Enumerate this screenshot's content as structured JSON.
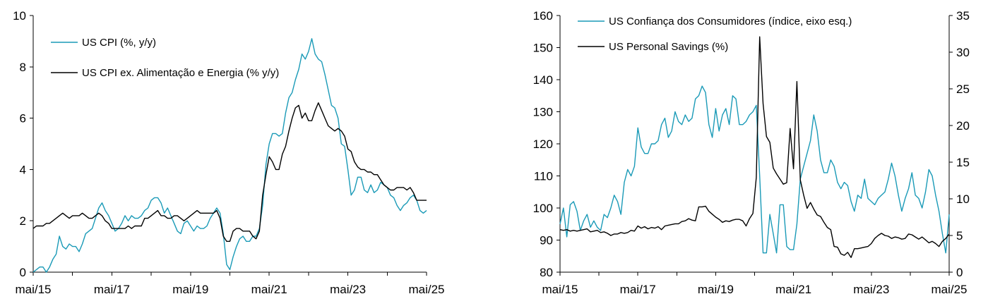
{
  "chart_data": [
    {
      "type": "line",
      "title": "",
      "xlabel": "",
      "ylabel": "",
      "ylim": [
        0,
        10
      ],
      "y_ticks": [
        "0",
        "2",
        "4",
        "6",
        "8",
        "10"
      ],
      "x_ticks": [
        "mai/15",
        "mai/17",
        "mai/19",
        "mai/21",
        "mai/23",
        "mai/25"
      ],
      "x_start": "2015-05",
      "x_end": "2025-05",
      "legend_position": "top-left",
      "series": [
        {
          "name": "US CPI (%, y/y)",
          "color": "#1a9ab7",
          "values": [
            0.0,
            0.1,
            0.2,
            0.2,
            0.0,
            0.2,
            0.5,
            0.7,
            1.4,
            1.0,
            0.9,
            1.1,
            1.0,
            1.0,
            0.8,
            1.1,
            1.5,
            1.6,
            1.7,
            2.1,
            2.5,
            2.7,
            2.4,
            2.2,
            1.9,
            1.6,
            1.7,
            1.9,
            2.2,
            2.0,
            2.2,
            2.1,
            2.1,
            2.2,
            2.4,
            2.5,
            2.8,
            2.9,
            2.9,
            2.7,
            2.3,
            2.5,
            2.2,
            1.9,
            1.6,
            1.5,
            1.9,
            2.0,
            1.8,
            1.6,
            1.8,
            1.7,
            1.7,
            1.8,
            2.1,
            2.3,
            2.5,
            2.3,
            1.5,
            0.3,
            0.1,
            0.6,
            1.0,
            1.3,
            1.4,
            1.2,
            1.2,
            1.4,
            1.4,
            1.7,
            2.6,
            4.2,
            5.0,
            5.4,
            5.4,
            5.3,
            5.4,
            6.2,
            6.8,
            7.0,
            7.5,
            7.9,
            8.5,
            8.3,
            8.6,
            9.1,
            8.5,
            8.3,
            8.2,
            7.7,
            7.1,
            6.5,
            6.4,
            6.0,
            5.0,
            4.9,
            4.0,
            3.0,
            3.2,
            3.7,
            3.7,
            3.2,
            3.1,
            3.4,
            3.1,
            3.2,
            3.5,
            3.4,
            3.3,
            3.0,
            2.9,
            2.6,
            2.4,
            2.6,
            2.7,
            2.9,
            3.0,
            2.8,
            2.4,
            2.3,
            2.4
          ]
        },
        {
          "name": "US CPI ex. Alimentação e Energia (% y/y)",
          "color": "#000000",
          "values": [
            1.7,
            1.8,
            1.8,
            1.8,
            1.9,
            1.9,
            2.0,
            2.1,
            2.2,
            2.3,
            2.2,
            2.1,
            2.2,
            2.2,
            2.2,
            2.3,
            2.2,
            2.1,
            2.1,
            2.2,
            2.3,
            2.2,
            2.0,
            1.9,
            1.7,
            1.7,
            1.7,
            1.7,
            1.7,
            1.8,
            1.7,
            1.8,
            1.8,
            1.8,
            2.1,
            2.1,
            2.2,
            2.3,
            2.4,
            2.2,
            2.2,
            2.1,
            2.1,
            2.2,
            2.2,
            2.1,
            2.0,
            2.1,
            2.2,
            2.3,
            2.4,
            2.3,
            2.3,
            2.3,
            2.3,
            2.3,
            2.4,
            2.1,
            1.4,
            1.2,
            1.2,
            1.6,
            1.7,
            1.7,
            1.6,
            1.6,
            1.6,
            1.4,
            1.3,
            1.6,
            3.0,
            3.8,
            4.5,
            4.3,
            4.0,
            4.0,
            4.6,
            4.9,
            5.5,
            6.0,
            6.4,
            6.5,
            6.0,
            6.2,
            5.9,
            5.9,
            6.3,
            6.6,
            6.3,
            6.0,
            5.7,
            5.6,
            5.5,
            5.6,
            5.5,
            5.3,
            4.8,
            4.7,
            4.3,
            4.1,
            4.0,
            4.0,
            3.9,
            3.9,
            3.8,
            3.8,
            3.6,
            3.4,
            3.3,
            3.2,
            3.2,
            3.3,
            3.3,
            3.3,
            3.2,
            3.3,
            3.1,
            2.8,
            2.8,
            2.8,
            2.8
          ]
        }
      ]
    },
    {
      "type": "line",
      "title": "",
      "xlabel": "",
      "ylabel": "",
      "ylim": [
        80,
        160
      ],
      "y2lim": [
        0,
        35
      ],
      "y_ticks": [
        "80",
        "90",
        "100",
        "110",
        "120",
        "130",
        "140",
        "150",
        "160"
      ],
      "y2_ticks": [
        "0",
        "5",
        "10",
        "15",
        "20",
        "25",
        "30",
        "35"
      ],
      "x_ticks": [
        "mai/15",
        "mai/17",
        "mai/19",
        "mai/21",
        "mai/23",
        "mai/25"
      ],
      "x_start": "2015-05",
      "x_end": "2025-05",
      "legend_position": "top-left",
      "series": [
        {
          "name": "US Confiança dos Consumidores (índice, eixo esq.)",
          "color": "#1a9ab7",
          "axis": "left",
          "values": [
            95,
            100,
            91,
            101,
            102,
            99,
            93,
            96,
            98,
            94,
            96,
            94,
            93,
            98,
            97,
            100,
            104,
            102,
            98,
            108,
            112,
            110,
            113,
            125,
            119,
            117,
            117,
            120,
            120,
            121,
            126,
            128,
            122,
            124,
            130,
            127,
            126,
            129,
            127,
            128,
            134,
            135,
            138,
            136,
            126,
            122,
            131,
            124,
            129,
            131,
            126,
            135,
            134,
            126,
            126,
            127,
            129,
            130,
            132,
            110,
            86,
            86,
            98,
            92,
            86,
            101,
            101,
            88,
            87,
            87,
            95,
            109,
            113,
            117,
            121,
            129,
            124,
            115,
            111,
            111,
            115,
            113,
            108,
            106,
            108,
            107,
            102,
            99,
            104,
            103,
            109,
            103,
            102,
            101,
            103,
            104,
            105,
            109,
            114,
            110,
            104,
            99,
            103,
            106,
            111,
            104,
            103,
            100,
            105,
            112,
            110,
            104,
            99,
            92,
            86,
            98
          ]
        },
        {
          "name": "US Personal Savings (%)",
          "color": "#000000",
          "axis": "right",
          "values": [
            5.8,
            5.7,
            5.8,
            5.6,
            5.7,
            5.6,
            5.7,
            5.8,
            5.9,
            5.5,
            5.6,
            5.7,
            5.4,
            5.5,
            5.3,
            5.0,
            5.2,
            5.2,
            5.4,
            5.3,
            5.4,
            5.7,
            5.6,
            6.3,
            6.0,
            6.2,
            5.9,
            6.1,
            6.0,
            6.2,
            5.8,
            6.3,
            6.4,
            6.5,
            6.6,
            6.6,
            6.9,
            7.0,
            7.3,
            7.1,
            7.0,
            8.9,
            8.9,
            9.0,
            8.3,
            7.9,
            7.5,
            7.2,
            6.8,
            7.0,
            6.9,
            7.1,
            7.2,
            7.2,
            7.0,
            6.3,
            7.3,
            8.0,
            12.9,
            32.1,
            23.0,
            18.5,
            17.7,
            14.2,
            13.4,
            12.7,
            12.0,
            12.2,
            19.6,
            14.1,
            26.0,
            12.6,
            10.5,
            8.7,
            9.5,
            8.6,
            7.8,
            7.6,
            6.8,
            6.1,
            5.8,
            3.5,
            3.4,
            2.5,
            2.3,
            2.7,
            2.0,
            3.2,
            3.2,
            3.3,
            3.4,
            3.5,
            3.9,
            4.6,
            5.0,
            5.3,
            5.0,
            4.9,
            4.6,
            4.8,
            4.7,
            4.5,
            4.6,
            5.2,
            5.1,
            4.8,
            4.5,
            4.8,
            4.4,
            4.0,
            4.2,
            3.9,
            3.5,
            4.2,
            4.6,
            5.2
          ]
        }
      ]
    }
  ]
}
